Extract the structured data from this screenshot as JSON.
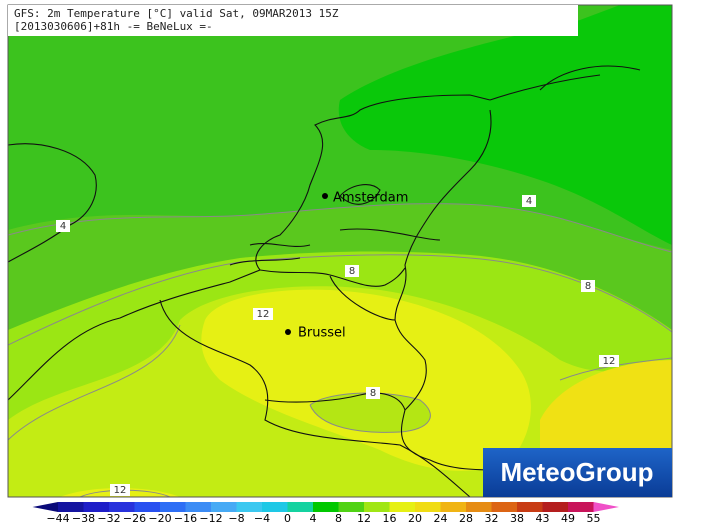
{
  "header": {
    "line1": "GFS: 2m Temperature [°C] valid Sat, 09MAR2013 15Z",
    "line2": "[2013030606]+81h -= BeNeLux =-"
  },
  "cities": [
    {
      "name": "Amsterdam"
    },
    {
      "name": "Brussel"
    }
  ],
  "contour_labels": [
    "4",
    "4",
    "8",
    "8",
    "12",
    "12",
    "8",
    "12"
  ],
  "logo": "MeteoGroup",
  "colorbar": {
    "labels": [
      "−44",
      "−38",
      "−32",
      "−26",
      "−20",
      "−16",
      "−12",
      "−8",
      "−4",
      "0",
      "4",
      "8",
      "12",
      "16",
      "20",
      "24",
      "28",
      "32",
      "38",
      "43",
      "49",
      "55"
    ],
    "colors": [
      "#0a0a78",
      "#1414a0",
      "#1e1ec8",
      "#2832dc",
      "#2850f0",
      "#2d6ef5",
      "#3c8cf5",
      "#46aaf5",
      "#3cc8f0",
      "#1ec8e6",
      "#14d2a0",
      "#00c800",
      "#50d214",
      "#a0e614",
      "#e6f014",
      "#f0dc14",
      "#f0b414",
      "#e68c14",
      "#dc6414",
      "#c83c14",
      "#b41e1e",
      "#c8145a",
      "#f050c8"
    ]
  }
}
